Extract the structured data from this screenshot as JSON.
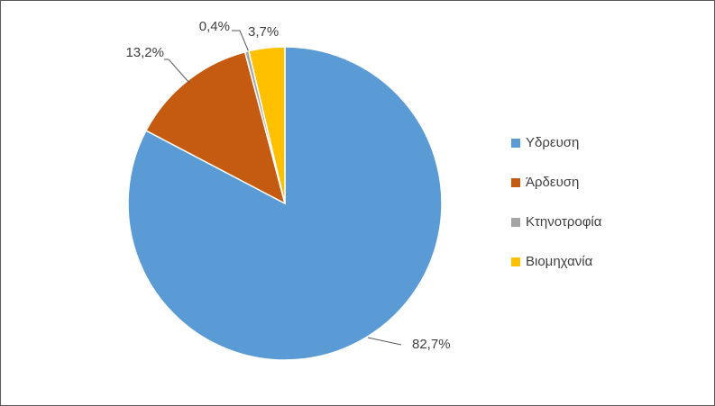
{
  "chart_data": {
    "type": "pie",
    "categories": [
      "Υδρευση",
      "Άρδευση",
      "Κτηνοτροφία",
      "Βιομηχανία"
    ],
    "values": [
      82.7,
      13.2,
      0.4,
      3.7
    ],
    "value_labels": [
      "82,7%",
      "13,2%",
      "0,4%",
      "3,7%"
    ],
    "colors": [
      "#5b9bd5",
      "#c55a11",
      "#a5a5a5",
      "#ffc000"
    ],
    "legend": "right"
  }
}
